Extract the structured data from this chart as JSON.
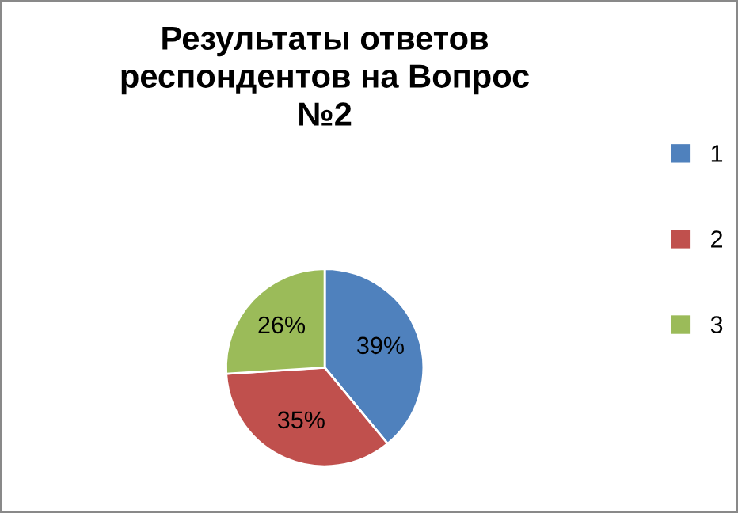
{
  "chart_data": {
    "type": "pie",
    "title": "Результаты ответов\nреспондентов на Вопрос\n№2",
    "categories": [
      "1",
      "2",
      "3"
    ],
    "values": [
      39,
      35,
      26
    ],
    "value_labels": [
      "39%",
      "35%",
      "26%"
    ],
    "colors": [
      "#4f81bd",
      "#c0504d",
      "#9bbb59"
    ],
    "legend": "right"
  }
}
